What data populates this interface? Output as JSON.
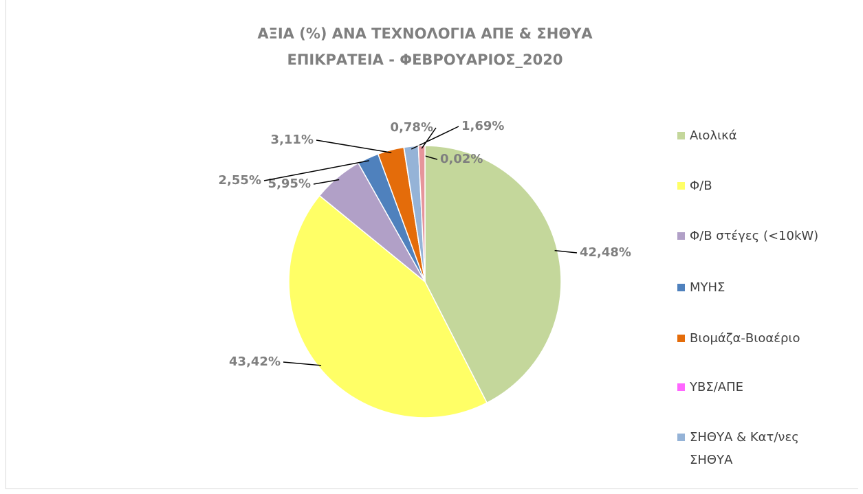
{
  "chart_data": {
    "type": "pie",
    "title": [
      "ΑΞΙΑ (%) ΑΝΑ ΤΕΧΝΟΛΟΓΙΑ ΑΠΕ & ΣΗΘΥΑ",
      "ΕΠΙΚΡΑΤΕΙΑ - ΦΕΒΡΟΥΑΡΙΟΣ_2020"
    ],
    "categories": [
      "Αιολικά",
      "Φ/Β",
      "Φ/Β στέγες (<10kW)",
      "ΜΥΗΣ",
      "Βιομάζα-Βιοαέριο",
      "ΥΒΣ/ΑΠΕ",
      "ΣΗΘΥΑ & Κατ/νες ΣΗΘΥΑ",
      null
    ],
    "values": [
      42.48,
      43.42,
      5.95,
      2.55,
      3.11,
      0.02,
      1.69,
      0.78
    ],
    "value_labels": [
      "42,48%",
      "43,42%",
      "5,95%",
      "2,55%",
      "3,11%",
      "0,02%",
      "1,69%",
      "0,78%"
    ],
    "colors": [
      "#c4d79b",
      "#ffff66",
      "#b1a0c7",
      "#4f81bd",
      "#e46c0a",
      "#ff66ff",
      "#95b3d7",
      "#e6959b"
    ],
    "legend": "right"
  }
}
